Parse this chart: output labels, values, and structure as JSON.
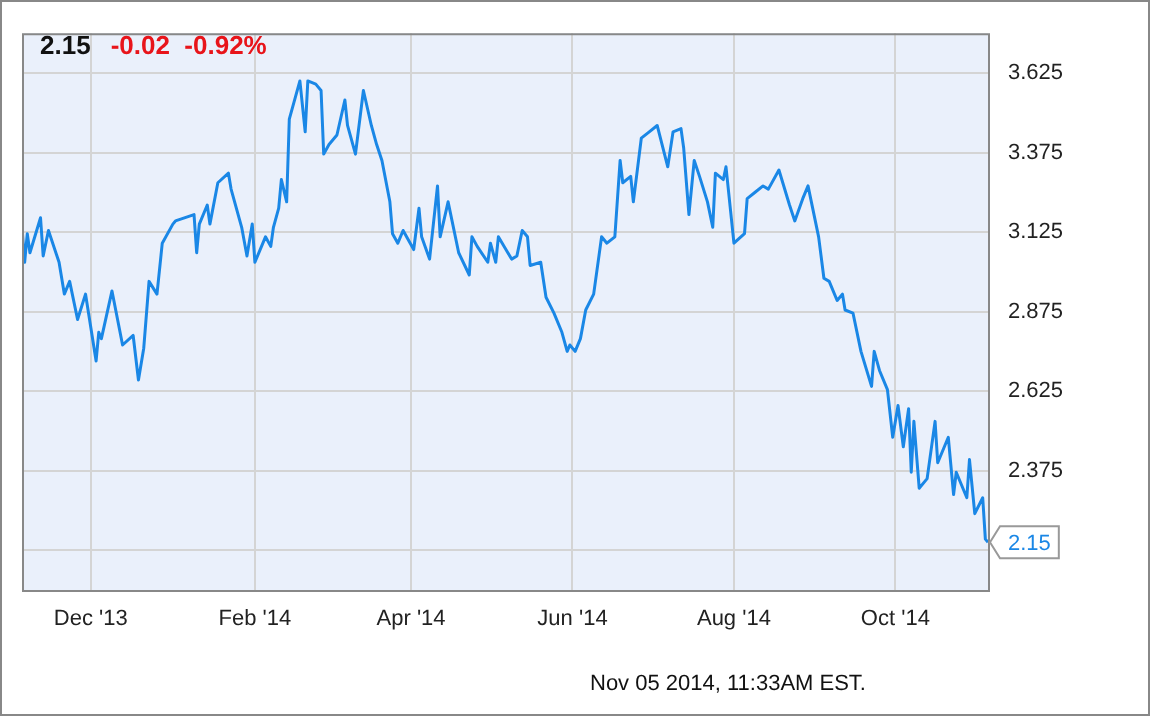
{
  "chart_data": {
    "type": "line",
    "title": "2.15",
    "subtitle": "-0.02  -0.92%",
    "annotations": [
      {
        "text": "2.15",
        "x": "2014-11-05",
        "y": 2.15
      },
      "Nov 05 2014, 11:33AM EST."
    ],
    "xlim": [
      "2013-11-05",
      "2014-11-05"
    ],
    "xticks": [
      {
        "value": "2013-12-01",
        "label": "Dec '13"
      },
      {
        "value": "2014-02-01",
        "label": "Feb '14"
      },
      {
        "value": "2014-04-01",
        "label": "Apr '14"
      },
      {
        "value": "2014-06-01",
        "label": "Jun '14"
      },
      {
        "value": "2014-08-01",
        "label": "Aug '14"
      },
      {
        "value": "2014-10-01",
        "label": "Oct '14"
      }
    ],
    "ylim": [
      2.0,
      3.75
    ],
    "yticks": [
      {
        "value": 2.125,
        "label": null
      },
      2.375,
      2.625,
      2.875,
      3.125,
      3.375,
      3.625
    ],
    "grid": true,
    "legend": false,
    "marker": "none",
    "line_style": "solid",
    "x": [
      "2013-11-05",
      "2013-11-06",
      "2013-11-07",
      "2013-11-08",
      "2013-11-12",
      "2013-11-13",
      "2013-11-15",
      "2013-11-19",
      "2013-11-21",
      "2013-11-23",
      "2013-11-26",
      "2013-11-29",
      "2013-12-03",
      "2013-12-04",
      "2013-12-05",
      "2013-12-09",
      "2013-12-13",
      "2013-12-17",
      "2013-12-19",
      "2013-12-21",
      "2013-12-23",
      "2013-12-26",
      "2013-12-28",
      "2014-01-01",
      "2014-01-02",
      "2014-01-09",
      "2014-01-10",
      "2014-01-11",
      "2014-01-14",
      "2014-01-15",
      "2014-01-18",
      "2014-01-22",
      "2014-01-23",
      "2014-01-27",
      "2014-01-29",
      "2014-01-31",
      "2014-02-01",
      "2014-02-05",
      "2014-02-07",
      "2014-02-08",
      "2014-02-10",
      "2014-02-11",
      "2014-02-13",
      "2014-02-14",
      "2014-02-18",
      "2014-02-20",
      "2014-02-21",
      "2014-02-24",
      "2014-02-26",
      "2014-02-27",
      "2014-03-01",
      "2014-03-04",
      "2014-03-07",
      "2014-03-08",
      "2014-03-11",
      "2014-03-14",
      "2014-03-17",
      "2014-03-19",
      "2014-03-21",
      "2014-03-24",
      "2014-03-25",
      "2014-03-27",
      "2014-03-29",
      "2014-04-02",
      "2014-04-04",
      "2014-04-05",
      "2014-04-08",
      "2014-04-11",
      "2014-04-12",
      "2014-04-15",
      "2014-04-19",
      "2014-04-23",
      "2014-04-24",
      "2014-04-26",
      "2014-04-30",
      "2014-05-01",
      "2014-05-03",
      "2014-05-04",
      "2014-05-09",
      "2014-05-11",
      "2014-05-13",
      "2014-05-15",
      "2014-05-16",
      "2014-05-20",
      "2014-05-22",
      "2014-05-25",
      "2014-05-28",
      "2014-05-30",
      "2014-05-31",
      "2014-06-02",
      "2014-06-04",
      "2014-06-06",
      "2014-06-09",
      "2014-06-12",
      "2014-06-14",
      "2014-06-17",
      "2014-06-19",
      "2014-06-20",
      "2014-06-23",
      "2014-06-24",
      "2014-06-27",
      "2014-06-30",
      "2014-07-03",
      "2014-07-07",
      "2014-07-09",
      "2014-07-12",
      "2014-07-13",
      "2014-07-15",
      "2014-07-17",
      "2014-07-19",
      "2014-07-22",
      "2014-07-24",
      "2014-07-25",
      "2014-07-28",
      "2014-07-29",
      "2014-08-01",
      "2014-08-05",
      "2014-08-06",
      "2014-08-09",
      "2014-08-12",
      "2014-08-14",
      "2014-08-18",
      "2014-08-22",
      "2014-08-24",
      "2014-08-27",
      "2014-08-29",
      "2014-09-02",
      "2014-09-04",
      "2014-09-06",
      "2014-09-09",
      "2014-09-11",
      "2014-09-12",
      "2014-09-15",
      "2014-09-18",
      "2014-09-22",
      "2014-09-23",
      "2014-09-25",
      "2014-09-28",
      "2014-09-30",
      "2014-10-02",
      "2014-10-04",
      "2014-10-06",
      "2014-10-07",
      "2014-10-08",
      "2014-10-10",
      "2014-10-13",
      "2014-10-16",
      "2014-10-17",
      "2014-10-21",
      "2014-10-23",
      "2014-10-24",
      "2014-10-28",
      "2014-10-29",
      "2014-10-31",
      "2014-11-03",
      "2014-11-04",
      "2014-11-05"
    ],
    "series": [
      {
        "color": "#1a87e6",
        "values": [
          3.14,
          3.03,
          3.12,
          3.06,
          3.17,
          3.05,
          3.13,
          3.03,
          2.93,
          2.97,
          2.85,
          2.93,
          2.72,
          2.81,
          2.79,
          2.94,
          2.77,
          2.8,
          2.66,
          2.76,
          2.97,
          2.93,
          3.09,
          3.15,
          3.16,
          3.18,
          3.06,
          3.15,
          3.21,
          3.15,
          3.28,
          3.31,
          3.26,
          3.14,
          3.05,
          3.15,
          3.03,
          3.11,
          3.08,
          3.14,
          3.2,
          3.29,
          3.22,
          3.48,
          3.6,
          3.44,
          3.6,
          3.59,
          3.57,
          3.37,
          3.4,
          3.43,
          3.54,
          3.46,
          3.37,
          3.57,
          3.46,
          3.4,
          3.35,
          3.22,
          3.12,
          3.09,
          3.13,
          3.07,
          3.2,
          3.11,
          3.04,
          3.27,
          3.11,
          3.22,
          3.06,
          2.99,
          3.11,
          3.08,
          3.03,
          3.09,
          3.03,
          3.11,
          3.04,
          3.05,
          3.13,
          3.11,
          3.02,
          3.03,
          2.92,
          2.87,
          2.81,
          2.75,
          2.77,
          2.75,
          2.79,
          2.88,
          2.93,
          3.11,
          3.09,
          3.11,
          3.35,
          3.28,
          3.3,
          3.22,
          3.42,
          3.44,
          3.46,
          3.33,
          3.44,
          3.45,
          3.39,
          3.18,
          3.35,
          3.3,
          3.22,
          3.14,
          3.31,
          3.29,
          3.33,
          3.09,
          3.12,
          3.23,
          3.25,
          3.27,
          3.26,
          3.32,
          3.21,
          3.16,
          3.23,
          3.27,
          3.11,
          2.98,
          2.97,
          2.91,
          2.93,
          2.88,
          2.87,
          2.75,
          2.64,
          2.75,
          2.69,
          2.63,
          2.48,
          2.58,
          2.45,
          2.57,
          2.37,
          2.53,
          2.32,
          2.35,
          2.53,
          2.4,
          2.48,
          2.3,
          2.37,
          2.29,
          2.41,
          2.24,
          2.29,
          2.16,
          2.15
        ]
      }
    ]
  }
}
